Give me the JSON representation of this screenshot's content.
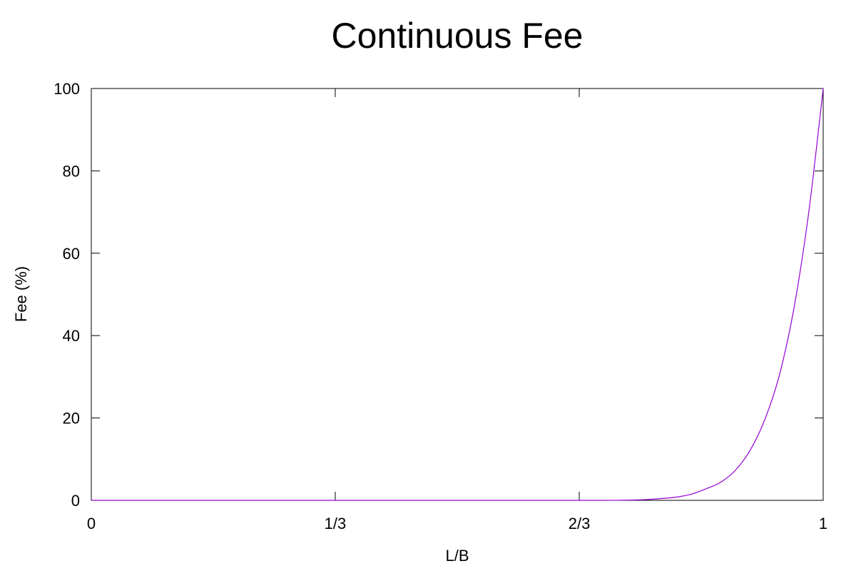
{
  "chart_data": {
    "type": "line",
    "title": "Continuous Fee",
    "xlabel": "L/B",
    "ylabel": "Fee (%)",
    "xlim": [
      0,
      1
    ],
    "ylim": [
      0,
      100
    ],
    "x_ticks": [
      {
        "value": 0,
        "label": "0"
      },
      {
        "value": 0.3333,
        "label": "1/3"
      },
      {
        "value": 0.6667,
        "label": "2/3"
      },
      {
        "value": 1,
        "label": "1"
      }
    ],
    "y_ticks": [
      {
        "value": 0,
        "label": "0"
      },
      {
        "value": 20,
        "label": "20"
      },
      {
        "value": 40,
        "label": "40"
      },
      {
        "value": 60,
        "label": "60"
      },
      {
        "value": 80,
        "label": "80"
      },
      {
        "value": 100,
        "label": "100"
      }
    ],
    "grid": false,
    "legend": "none",
    "series": [
      {
        "color": "#9400d3",
        "x": [
          0,
          0.1,
          0.2,
          0.3,
          0.4,
          0.5,
          0.6,
          0.7,
          0.72,
          0.74,
          0.76,
          0.78,
          0.8,
          0.82,
          0.84,
          0.86,
          0.88,
          0.9,
          0.92,
          0.94,
          0.96,
          0.98,
          1.0
        ],
        "y": [
          0,
          0,
          0,
          0,
          0,
          0,
          0,
          0,
          0.02,
          0.08,
          0.2,
          0.45,
          0.8,
          1.5,
          2.8,
          4.4,
          7.3,
          12.1,
          19.5,
          30.3,
          46.6,
          69.6,
          100
        ]
      }
    ]
  }
}
